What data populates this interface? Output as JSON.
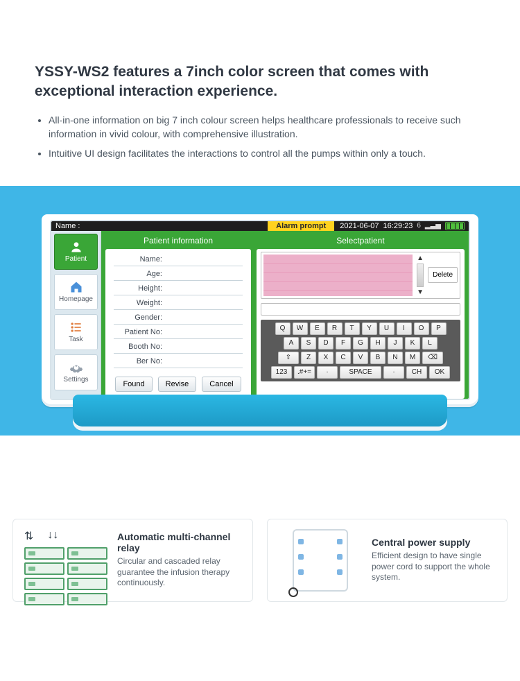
{
  "intro": {
    "heading": "YSSY-WS2 features a 7inch color screen that comes with exceptional interaction experience.",
    "bullets": [
      "All-in-one information on big 7 inch colour screen helps healthcare professionals to receive such information in vivid colour, with comprehensive illustration.",
      "Intuitive UI design facilitates the interactions to control all the pumps within only a touch."
    ]
  },
  "status": {
    "name_label": "Name :",
    "alarm": "Alarm prompt",
    "date": "2021-06-07",
    "time": "16:29:23",
    "signal": "6"
  },
  "sidebar": [
    {
      "label": "Patient",
      "icon": "user"
    },
    {
      "label": "Homepage",
      "icon": "home"
    },
    {
      "label": "Task",
      "icon": "list"
    },
    {
      "label": "Settings",
      "icon": "gear"
    }
  ],
  "patient_panel": {
    "title": "Patient information",
    "fields": [
      "Name:",
      "Age:",
      "Height:",
      "Weight:",
      "Gender:",
      "Patient No:",
      "Booth No:",
      "Ber No:"
    ],
    "buttons": [
      "Found",
      "Revise",
      "Cancel"
    ]
  },
  "select_panel": {
    "title": "Selectpatient",
    "delete": "Delete"
  },
  "keyboard": {
    "r1": [
      "Q",
      "W",
      "E",
      "R",
      "T",
      "Y",
      "U",
      "I",
      "O",
      "P"
    ],
    "r2": [
      "A",
      "S",
      "D",
      "F",
      "G",
      "H",
      "J",
      "K",
      "L"
    ],
    "r3": [
      "⇧",
      "Z",
      "X",
      "C",
      "V",
      "B",
      "N",
      "M",
      "⌫"
    ],
    "r4": [
      "123",
      ".#+=",
      "·",
      "SPACE",
      "·",
      "CH",
      "OK"
    ]
  },
  "features": {
    "relay": {
      "title": "Automatic multi-channel relay",
      "desc": "Circular and cascaded relay guarantee the infusion therapy continuously."
    },
    "power": {
      "title": "Central power supply",
      "desc": "Efficient design to have single power cord to support the whole system."
    }
  },
  "colors": {
    "band": "#3fb6e7",
    "green": "#3aa637",
    "alarm": "#ffd21e",
    "pink": "#ecb0c9"
  }
}
